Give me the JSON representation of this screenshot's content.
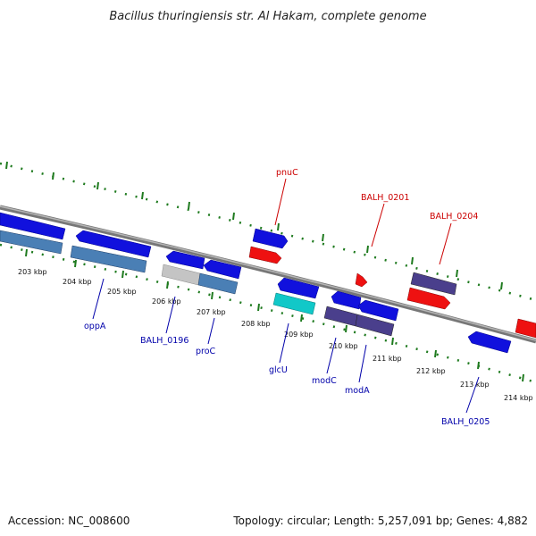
{
  "title": "Bacillus thuringiensis str. Al Hakam, complete genome",
  "footer": {
    "accession": "Accession: NC_008600",
    "summary": "Topology: circular; Length: 5,257,091 bp; Genes: 4,882"
  },
  "colors": {
    "backbone": "#8a8a8a",
    "tick_green": "#1e7a1e",
    "forward_label": "#cc0000",
    "reverse_label": "#0000aa",
    "gene_blue": "#1111dd",
    "gene_red": "#ee1111",
    "gene_steel": "#4a7fb5",
    "gene_purple": "#4a3f8c",
    "gene_cyan": "#11c8c8",
    "gene_gray": "#c4c4c4"
  },
  "ticks": [
    {
      "label": "203 kbp"
    },
    {
      "label": "204 kbp"
    },
    {
      "label": "205 kbp"
    },
    {
      "label": "206 kbp"
    },
    {
      "label": "207 kbp"
    },
    {
      "label": "208 kbp"
    },
    {
      "label": "209 kbp"
    },
    {
      "label": "210 kbp"
    },
    {
      "label": "211 kbp"
    },
    {
      "label": "212 kbp"
    },
    {
      "label": "213 kbp"
    },
    {
      "label": "214 kbp"
    }
  ],
  "labels": {
    "pnuC": "pnuC",
    "balh0201": "BALH_0201",
    "balh0204": "BALH_0204",
    "oppA": "oppA",
    "balh0196": "BALH_0196",
    "proC": "proC",
    "glcU": "glcU",
    "modC": "modC",
    "modA": "modA",
    "balh0205": "BALH_0205"
  }
}
